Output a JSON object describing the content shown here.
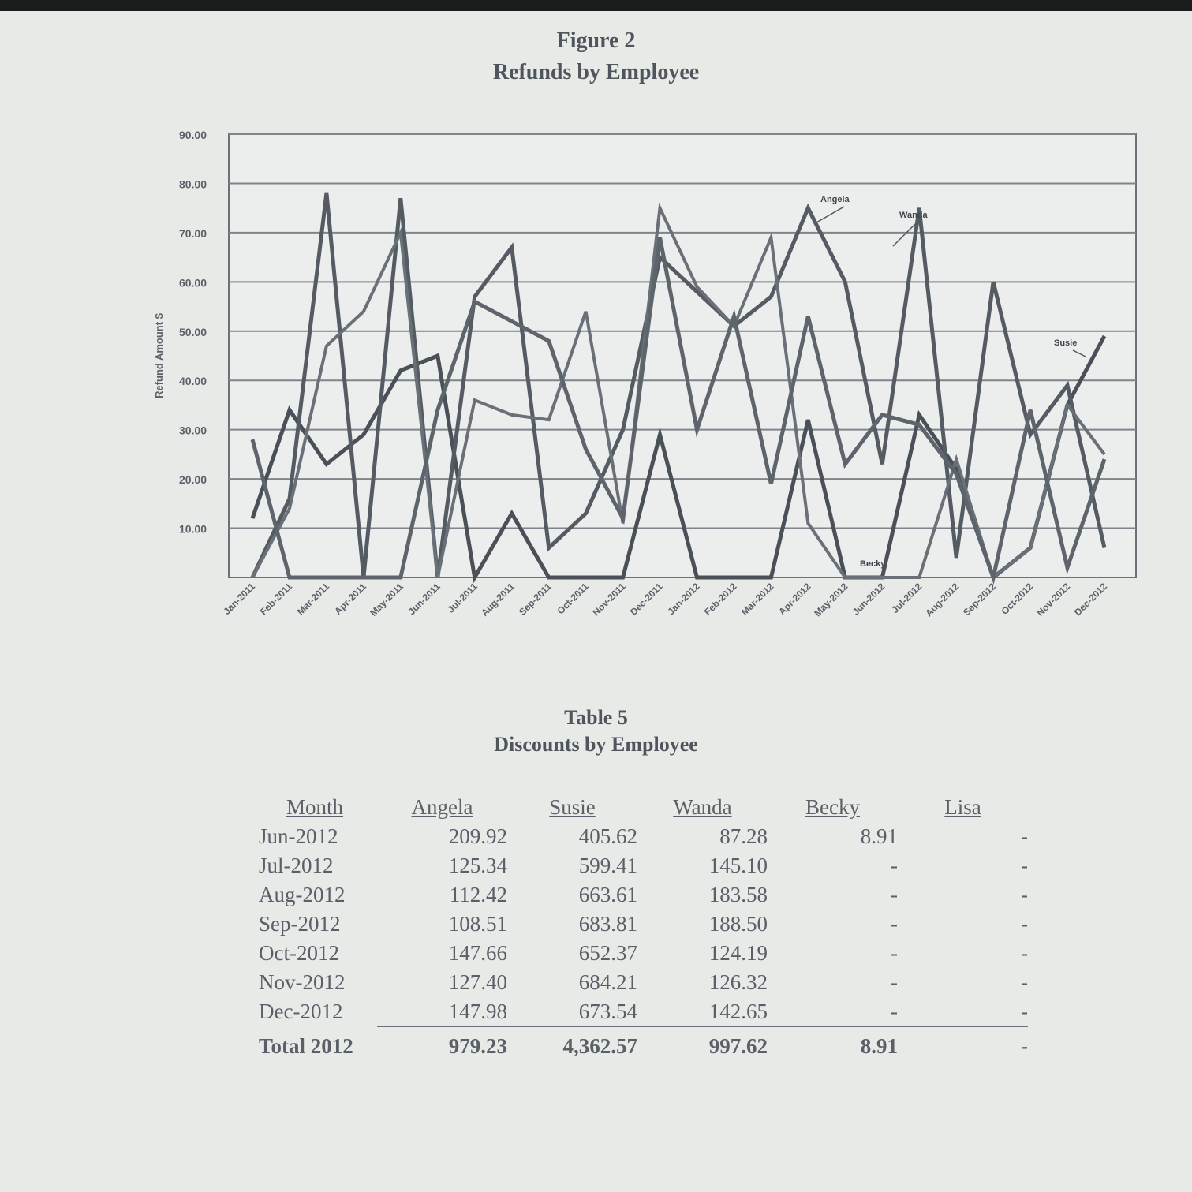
{
  "figure": {
    "number_label": "Figure 2",
    "title": "Refunds by Employee"
  },
  "chart_data": {
    "type": "line",
    "title": "Refunds by Employee",
    "ylabel": "Refund Amount $",
    "xlabel": "",
    "ylim": [
      0,
      90
    ],
    "yticks": [
      "10.00",
      "20.00",
      "30.00",
      "40.00",
      "50.00",
      "60.00",
      "70.00",
      "80.00",
      "90.00"
    ],
    "grid": true,
    "categories": [
      "Jan-2011",
      "Feb-2011",
      "Mar-2011",
      "Apr-2011",
      "May-2011",
      "Jun-2011",
      "Jul-2011",
      "Aug-2011",
      "Sep-2011",
      "Oct-2011",
      "Nov-2011",
      "Dec-2011",
      "Jan-2012",
      "Feb-2012",
      "Mar-2012",
      "Apr-2012",
      "May-2012",
      "Jun-2012",
      "Jul-2012",
      "Aug-2012",
      "Sep-2012",
      "Oct-2012",
      "Nov-2012",
      "Dec-2012"
    ],
    "series": [
      {
        "name": "Angela",
        "color": "#4a5058",
        "values": [
          12,
          34,
          23,
          29,
          42,
          45,
          0,
          13,
          0,
          0,
          0,
          29,
          0,
          0,
          0,
          32,
          0,
          0,
          33,
          22,
          0,
          6,
          35,
          49
        ]
      },
      {
        "name": "Wanda",
        "color": "#555b63",
        "values": [
          0,
          16,
          78,
          0,
          77,
          0,
          57,
          67,
          6,
          13,
          30,
          65,
          58,
          51,
          57,
          75,
          60,
          23,
          75,
          4,
          60,
          29,
          39,
          6
        ]
      },
      {
        "name": "Susie",
        "color": "#6a7078",
        "values": [
          0,
          14,
          47,
          54,
          70,
          0,
          36,
          33,
          32,
          54,
          11,
          75,
          59,
          51,
          69,
          11,
          0,
          0,
          0,
          24,
          0,
          6,
          35,
          25
        ]
      },
      {
        "name": "Becky",
        "color": "#5e646c",
        "values": [
          28,
          0,
          0,
          0,
          0,
          34,
          56,
          52,
          48,
          26,
          12,
          69,
          30,
          53,
          19,
          53,
          23,
          33,
          31,
          21,
          0,
          34,
          2,
          24
        ]
      }
    ],
    "annotations": [
      {
        "text": "Angela",
        "series": "Angela"
      },
      {
        "text": "Wanda",
        "series": "Wanda"
      },
      {
        "text": "Susie",
        "series": "Susie"
      },
      {
        "text": "Becky",
        "series": "Becky"
      }
    ]
  },
  "table": {
    "number_label": "Table 5",
    "title": "Discounts by Employee",
    "columns": [
      "Month",
      "Angela",
      "Susie",
      "Wanda",
      "Becky",
      "Lisa"
    ],
    "rows": [
      [
        "Jun-2012",
        "209.92",
        "405.62",
        "87.28",
        "8.91",
        "-"
      ],
      [
        "Jul-2012",
        "125.34",
        "599.41",
        "145.10",
        "-",
        "-"
      ],
      [
        "Aug-2012",
        "112.42",
        "663.61",
        "183.58",
        "-",
        "-"
      ],
      [
        "Sep-2012",
        "108.51",
        "683.81",
        "188.50",
        "-",
        "-"
      ],
      [
        "Oct-2012",
        "147.66",
        "652.37",
        "124.19",
        "-",
        "-"
      ],
      [
        "Nov-2012",
        "127.40",
        "684.21",
        "126.32",
        "-",
        "-"
      ],
      [
        "Dec-2012",
        "147.98",
        "673.54",
        "142.65",
        "-",
        "-"
      ]
    ],
    "total": [
      "Total 2012",
      "979.23",
      "4,362.57",
      "997.62",
      "8.91",
      "-"
    ]
  }
}
